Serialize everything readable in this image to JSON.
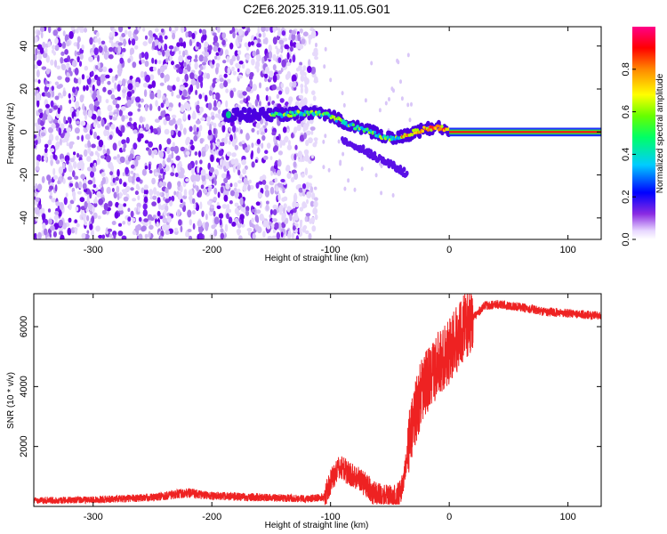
{
  "title": "C2E6.2025.319.11.05.G01",
  "chart_data": [
    {
      "type": "heatmap",
      "title": "C2E6.2025.319.11.05.G01",
      "xlabel": "Height of straight line (km)",
      "ylabel": "Frequency (Hz)",
      "xlim": [
        -350,
        128
      ],
      "ylim": [
        -50,
        49
      ],
      "xticks": [
        -300,
        -200,
        -100,
        0,
        100
      ],
      "yticks": [
        -40,
        -20,
        0,
        20,
        40
      ],
      "noise_region_x": [
        -350,
        -112
      ],
      "signal_trace": {
        "x": [
          -190,
          -150,
          -140,
          -130,
          -120,
          -110,
          -100,
          -95,
          -90,
          -85,
          -80,
          -75,
          -70,
          -65,
          -60,
          -55,
          -50,
          -45,
          -40,
          -35,
          -30,
          -25,
          -20,
          -15,
          -10,
          -5,
          0,
          50,
          128
        ],
        "y": [
          8,
          8,
          8,
          8.5,
          9,
          8.5,
          7.5,
          6,
          5,
          3.5,
          2.5,
          1.5,
          0.5,
          0,
          -1.5,
          -2.5,
          -3,
          -2.5,
          -2,
          -1.5,
          0,
          0.5,
          1.5,
          1.5,
          2,
          1.5,
          0.5,
          0,
          0
        ]
      },
      "colorbar": {
        "label": "Normalized spectral amplitude",
        "range": [
          0,
          1
        ],
        "ticks": [
          0.0,
          0.2,
          0.4,
          0.6,
          0.8
        ]
      }
    },
    {
      "type": "line",
      "xlabel": "Height of straight line (km)",
      "ylabel": "SNR (10 * v/v)",
      "xlim": [
        -350,
        128
      ],
      "ylim": [
        0,
        7100
      ],
      "xticks": [
        -300,
        -200,
        -100,
        0,
        100
      ],
      "yticks": [
        2000,
        4000,
        6000
      ],
      "series": [
        {
          "name": "SNR",
          "color": "#ee2222",
          "x": [
            -350,
            -300,
            -250,
            -220,
            -200,
            -160,
            -120,
            -105,
            -100,
            -95,
            -90,
            -85,
            -80,
            -75,
            -70,
            -65,
            -60,
            -55,
            -50,
            -45,
            -40,
            -35,
            -30,
            -25,
            -20,
            -15,
            -10,
            -5,
            0,
            5,
            10,
            15,
            20,
            25,
            30,
            40,
            50,
            60,
            80,
            100,
            128
          ],
          "y": [
            200,
            220,
            300,
            450,
            350,
            300,
            260,
            300,
            800,
            1200,
            1300,
            1100,
            1000,
            900,
            700,
            500,
            400,
            350,
            300,
            280,
            600,
            1800,
            3000,
            3600,
            4100,
            4400,
            4700,
            4900,
            5200,
            5500,
            5800,
            6100,
            6300,
            6500,
            6700,
            6750,
            6700,
            6650,
            6500,
            6450,
            6350
          ]
        }
      ]
    }
  ]
}
